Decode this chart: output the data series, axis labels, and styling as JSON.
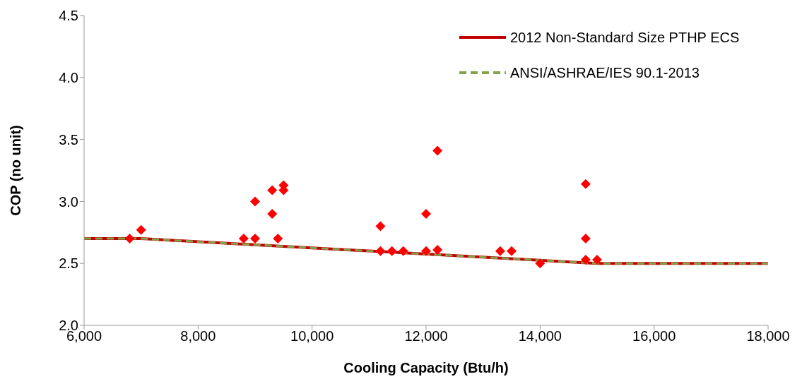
{
  "chart_data": {
    "type": "scatter",
    "xlabel": "Cooling Capacity (Btu/h)",
    "ylabel": "COP (no unit)",
    "xlim": [
      6000,
      18000
    ],
    "xticks": [
      {
        "value": 6000,
        "label": "6,000"
      },
      {
        "value": 8000,
        "label": "8,000"
      },
      {
        "value": 10000,
        "label": "10,000"
      },
      {
        "value": 12000,
        "label": "12,000"
      },
      {
        "value": 14000,
        "label": "14,000"
      },
      {
        "value": 16000,
        "label": "16,000"
      },
      {
        "value": 18000,
        "label": "18,000"
      }
    ],
    "ylim": [
      2.0,
      4.5
    ],
    "yticks": [
      {
        "value": 2,
        "label": "2.0"
      },
      {
        "value": 2.5,
        "label": "2.5"
      },
      {
        "value": 3,
        "label": "3.0"
      },
      {
        "value": 3.5,
        "label": "3.5"
      },
      {
        "value": 4,
        "label": "4.0"
      },
      {
        "value": 4.5,
        "label": "4.5"
      }
    ],
    "grid": false,
    "legend": "top right",
    "marker": "diamond",
    "series": [
      {
        "color": "#ff0000",
        "x": [
          6800,
          7000,
          8800,
          9000,
          9000,
          9300,
          9300,
          9400,
          9500,
          9500,
          11200,
          11200,
          11400,
          11600,
          12000,
          12000,
          12200,
          12200,
          13300,
          13500,
          14000,
          14800,
          14800,
          14800,
          15000
        ],
        "values": [
          2.7,
          2.77,
          2.7,
          3.0,
          2.7,
          3.09,
          2.9,
          2.7,
          3.13,
          3.09,
          2.8,
          2.6,
          2.6,
          2.6,
          2.9,
          2.6,
          2.61,
          3.41,
          2.6,
          2.6,
          2.5,
          3.14,
          2.7,
          2.53,
          2.53
        ]
      },
      {
        "type": "line",
        "name": "2012 Non-Standard Size PTHP ECS",
        "color": "#c00000",
        "line_style": "solid",
        "marker": "none",
        "x": [
          6000,
          7000,
          15000,
          18000
        ],
        "values": [
          2.7,
          2.7,
          2.5,
          2.5
        ]
      },
      {
        "type": "line",
        "name": "ANSI/ASHRAE/IES 90.1-2013",
        "color": "#86a34a",
        "line_style": "dashed",
        "marker": "none",
        "x": [
          6000,
          7000,
          15000,
          18000
        ],
        "values": [
          2.7,
          2.7,
          2.5,
          2.5
        ]
      }
    ]
  }
}
